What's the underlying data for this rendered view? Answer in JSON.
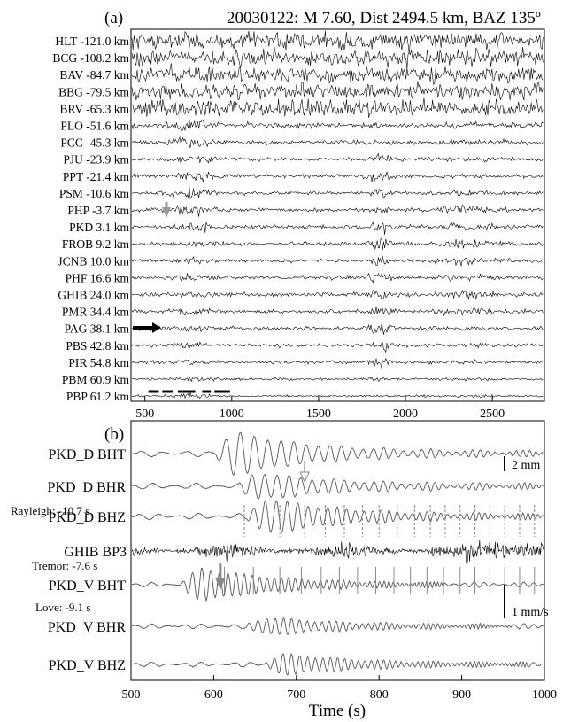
{
  "chart_data": [
    {
      "type": "line",
      "panel_label": "(a)",
      "title": "20030122: M 7.60, Dist 2494.5 km, BAZ 135º",
      "xlabel": "",
      "ylabel": "",
      "xlim": [
        420,
        2800
      ],
      "xticks": [
        500,
        1000,
        1500,
        2000,
        2500
      ],
      "grid": false,
      "stations": [
        {
          "label": "HLT -121.0 km",
          "amp": 1.0
        },
        {
          "label": "BCG -108.2 km",
          "amp": 0.7
        },
        {
          "label": "BAV -84.7 km",
          "amp": 0.8
        },
        {
          "label": "BBG -79.5 km",
          "amp": 0.8
        },
        {
          "label": "BRV -65.3 km",
          "amp": 0.75
        },
        {
          "label": "PLO -51.6 km",
          "amp": 0.65
        },
        {
          "label": "PCC -45.3 km",
          "amp": 0.5
        },
        {
          "label": "PJU -23.9 km",
          "amp": 0.45
        },
        {
          "label": "PPT -21.4 km",
          "amp": 0.4
        },
        {
          "label": "PSM -10.6 km",
          "amp": 0.4
        },
        {
          "label": "PHP -3.7 km",
          "amp": 0.4
        },
        {
          "label": "PKD  3.1 km",
          "amp": 0.4
        },
        {
          "label": "FROB  9.2 km",
          "amp": 0.4
        },
        {
          "label": "JCNB 10.0 km",
          "amp": 0.4
        },
        {
          "label": "PHF 16.6 km",
          "amp": 0.4
        },
        {
          "label": "GHIB 24.0 km",
          "amp": 0.45
        },
        {
          "label": "PMR 34.4 km",
          "amp": 0.4
        },
        {
          "label": "PAG 38.1 km",
          "amp": 0.45
        },
        {
          "label": "PBS 42.8 km",
          "amp": 0.35
        },
        {
          "label": "PIR 54.8 km",
          "amp": 0.3
        },
        {
          "label": "PBM 60.9 km",
          "amp": 0.2
        },
        {
          "label": "PBP 61.2 km",
          "amp": 0.1
        }
      ],
      "marker_bars": [
        [
          520,
          580
        ],
        [
          600,
          660
        ],
        [
          690,
          790
        ],
        [
          830,
          880
        ],
        [
          900,
          990
        ]
      ]
    },
    {
      "type": "line",
      "panel_label": "(b)",
      "xlabel": "Time (s)",
      "ylabel": "",
      "xlim": [
        500,
        1000
      ],
      "xticks": [
        500,
        600,
        700,
        800,
        900,
        1000
      ],
      "grid": false,
      "traces": [
        {
          "label": "PKD_D BHT",
          "kind": "disp",
          "onset": 600,
          "amp": 1.0,
          "period": 28
        },
        {
          "label": "PKD_D BHR",
          "kind": "disp",
          "onset": 630,
          "amp": 0.6,
          "period": 26
        },
        {
          "label": "PKD_D BHZ",
          "kind": "disp",
          "onset": 640,
          "amp": 0.8,
          "period": 24
        },
        {
          "label": "GHIB BP3",
          "kind": "tremor",
          "onset": 500,
          "amp": 1.0,
          "period": 3
        },
        {
          "label": "PKD_V BHT",
          "kind": "vel",
          "onset": 560,
          "amp": 1.0,
          "period": 20
        },
        {
          "label": "PKD_V BHR",
          "kind": "vel",
          "onset": 640,
          "amp": 0.5,
          "period": 20
        },
        {
          "label": "PKD_V BHZ",
          "kind": "vel",
          "onset": 660,
          "amp": 0.6,
          "period": 20
        }
      ],
      "annotations": {
        "rayleigh": "Rayleigh: -10.7  s",
        "tremor": "Tremor: -7.6  s",
        "love": "Love: -9.1  s"
      },
      "scale_bars": {
        "displacement": "2 mm",
        "velocity": "1 mm/s"
      },
      "rayleigh_ticks": [
        637,
        680,
        710,
        735,
        758,
        780,
        800,
        822,
        843,
        862,
        880,
        898,
        916,
        934,
        952,
        970,
        988
      ],
      "love_ticks": [
        613,
        648,
        680,
        706,
        730,
        752,
        774,
        796,
        818,
        838,
        858,
        878,
        898,
        916,
        934,
        952,
        970,
        988
      ],
      "arrows": [
        {
          "x": 710,
          "trace": "PKD_D BHR"
        },
        {
          "x": 608,
          "trace": "PKD_V BHT"
        }
      ]
    }
  ]
}
